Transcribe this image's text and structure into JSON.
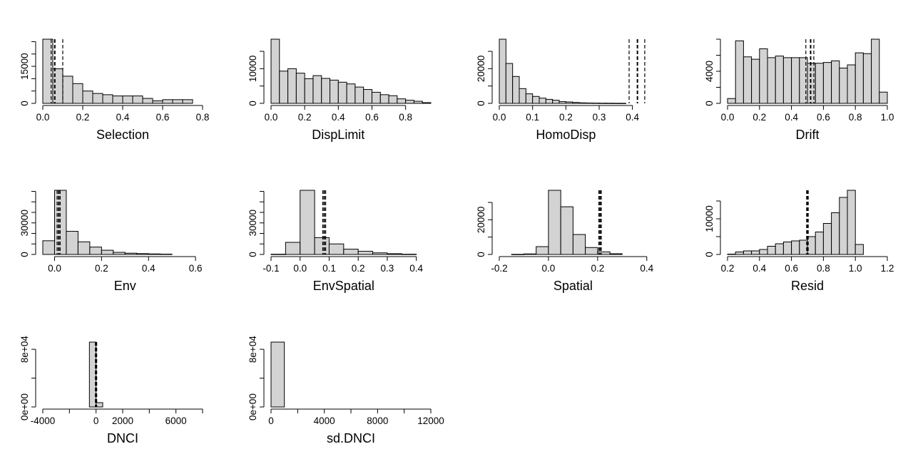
{
  "colors": {
    "bar_fill": "#d3d3d3",
    "bar_stroke": "#000000",
    "line": "#000000"
  },
  "chart_data": [
    {
      "type": "bar",
      "xlabel": "Selection",
      "xlim": [
        0.0,
        0.8
      ],
      "ylim": [
        0,
        26000
      ],
      "xticks": [
        0.0,
        0.2,
        0.4,
        0.6,
        0.8
      ],
      "xtick_labels": [
        "0.0",
        "0.2",
        "0.4",
        "0.6",
        "0.8"
      ],
      "yticks": [
        0,
        5000,
        10000,
        15000,
        20000,
        25000
      ],
      "ytick_labels": [
        "0",
        "",
        "",
        "15000",
        "",
        ""
      ],
      "bins": [
        0.0,
        0.05,
        0.1,
        0.15,
        0.2,
        0.25,
        0.3,
        0.35,
        0.4,
        0.45,
        0.5,
        0.55,
        0.6,
        0.65,
        0.7,
        0.75
      ],
      "bin_width": 0.05,
      "values": [
        26000,
        14000,
        11000,
        8000,
        5000,
        4000,
        3500,
        3000,
        3000,
        3000,
        2000,
        1000,
        1500,
        1500,
        1500,
        0
      ],
      "vlines": [
        0.042,
        0.06,
        0.1
      ]
    },
    {
      "type": "bar",
      "xlabel": "DispLimit",
      "xlim": [
        0.0,
        0.95
      ],
      "ylim": [
        0,
        18500
      ],
      "xticks": [
        0.0,
        0.2,
        0.4,
        0.6,
        0.8
      ],
      "xtick_labels": [
        "0.0",
        "0.2",
        "0.4",
        "0.6",
        "0.8"
      ],
      "yticks": [
        0,
        5000,
        10000,
        15000
      ],
      "ytick_labels": [
        "0",
        "",
        "10000",
        ""
      ],
      "bins": [
        0.0,
        0.05,
        0.1,
        0.15,
        0.2,
        0.25,
        0.3,
        0.35,
        0.4,
        0.45,
        0.5,
        0.55,
        0.6,
        0.65,
        0.7,
        0.75,
        0.8,
        0.85,
        0.9
      ],
      "bin_width": 0.05,
      "values": [
        18500,
        9300,
        10000,
        8700,
        7100,
        8000,
        7200,
        6700,
        6100,
        5600,
        4700,
        4000,
        3200,
        2500,
        2200,
        1300,
        900,
        600,
        200
      ],
      "vlines": []
    },
    {
      "type": "bar",
      "xlabel": "HomoDisp",
      "xlim": [
        0.0,
        0.48
      ],
      "ylim": [
        0,
        37000
      ],
      "xticks": [
        0.0,
        0.1,
        0.2,
        0.3,
        0.4
      ],
      "xtick_labels": [
        "0.0",
        "0.1",
        "0.2",
        "0.3",
        "0.4"
      ],
      "yticks": [
        0,
        10000,
        20000,
        30000
      ],
      "ytick_labels": [
        "0",
        "",
        "20000",
        ""
      ],
      "bins": [
        0.0,
        0.02,
        0.04,
        0.06,
        0.08,
        0.1,
        0.12,
        0.14,
        0.16,
        0.18,
        0.2,
        0.22,
        0.24,
        0.26,
        0.28,
        0.3,
        0.32,
        0.34,
        0.36
      ],
      "bin_width": 0.02,
      "values": [
        37000,
        23000,
        15500,
        8500,
        5500,
        4000,
        3000,
        2300,
        1800,
        1000,
        800,
        500,
        300,
        200,
        150,
        100,
        80,
        50,
        30
      ],
      "vlines": [
        0.39,
        0.415,
        0.437
      ]
    },
    {
      "type": "bar",
      "xlabel": "Drift",
      "xlim": [
        0.0,
        1.0
      ],
      "ylim": [
        0,
        8000
      ],
      "xticks": [
        0.0,
        0.2,
        0.4,
        0.6,
        0.8,
        1.0
      ],
      "xtick_labels": [
        "0.0",
        "0.2",
        "0.4",
        "0.6",
        "0.8",
        "1.0"
      ],
      "yticks": [
        0,
        2000,
        4000,
        6000,
        8000
      ],
      "ytick_labels": [
        "0",
        "",
        "4000",
        "",
        ""
      ],
      "bins": [
        0.0,
        0.05,
        0.1,
        0.15,
        0.2,
        0.25,
        0.3,
        0.35,
        0.4,
        0.45,
        0.5,
        0.55,
        0.6,
        0.65,
        0.7,
        0.75,
        0.8,
        0.85,
        0.9,
        0.95
      ],
      "bin_width": 0.05,
      "values": [
        600,
        7800,
        5800,
        5500,
        6800,
        5700,
        5900,
        5700,
        5700,
        5700,
        5000,
        5000,
        5100,
        5300,
        4400,
        4800,
        6300,
        6200,
        8000,
        1400
      ],
      "vlines": [
        0.49,
        0.52,
        0.54
      ]
    },
    {
      "type": "bar",
      "xlabel": "Env",
      "xlim": [
        -0.05,
        0.63
      ],
      "ylim": [
        0,
        61000
      ],
      "xticks": [
        0.0,
        0.2,
        0.4,
        0.6
      ],
      "xtick_labels": [
        "0.0",
        "0.2",
        "0.4",
        "0.6"
      ],
      "yticks": [
        0,
        10000,
        20000,
        30000,
        40000,
        50000,
        60000
      ],
      "ytick_labels": [
        "0",
        "",
        "",
        "30000",
        "",
        "",
        ""
      ],
      "bins": [
        -0.05,
        0.0,
        0.05,
        0.1,
        0.15,
        0.2,
        0.25,
        0.3,
        0.35,
        0.4,
        0.45
      ],
      "bin_width": 0.05,
      "values": [
        13000,
        61000,
        22000,
        12000,
        7000,
        4000,
        2000,
        1200,
        800,
        500,
        300
      ],
      "vlines": [
        0.011,
        0.018,
        0.024
      ]
    },
    {
      "type": "bar",
      "xlabel": "EnvSpatial",
      "xlim": [
        -0.1,
        0.45
      ],
      "ylim": [
        0,
        61000
      ],
      "xticks": [
        -0.1,
        0.0,
        0.1,
        0.2,
        0.3,
        0.4
      ],
      "xtick_labels": [
        "-0.1",
        "0.0",
        "0.1",
        "0.2",
        "0.3",
        "0.4"
      ],
      "yticks": [
        0,
        10000,
        20000,
        30000,
        40000,
        50000,
        60000
      ],
      "ytick_labels": [
        "0",
        "",
        "",
        "30000",
        "",
        "",
        ""
      ],
      "bins": [
        -0.1,
        -0.05,
        0.0,
        0.05,
        0.1,
        0.15,
        0.2,
        0.25,
        0.3,
        0.35
      ],
      "bin_width": 0.05,
      "values": [
        200,
        11500,
        61000,
        16000,
        10000,
        5000,
        3000,
        1500,
        700,
        200
      ],
      "vlines": [
        0.078,
        0.083,
        0.088
      ]
    },
    {
      "type": "bar",
      "xlabel": "Spatial",
      "xlim": [
        -0.2,
        0.45
      ],
      "ylim": [
        0,
        37000
      ],
      "xticks": [
        -0.2,
        0.0,
        0.2,
        0.4
      ],
      "xtick_labels": [
        "-0.2",
        "0.0",
        "0.2",
        "0.4"
      ],
      "yticks": [
        0,
        10000,
        20000,
        30000
      ],
      "ytick_labels": [
        "0",
        "",
        "20000",
        ""
      ],
      "bins": [
        -0.2,
        -0.15,
        -0.1,
        -0.05,
        0.0,
        0.05,
        0.1,
        0.15,
        0.2,
        0.25,
        0.3
      ],
      "bin_width": 0.05,
      "values": [
        0,
        50,
        300,
        4500,
        37000,
        27500,
        11500,
        4000,
        1500,
        400,
        0
      ],
      "vlines": [
        0.205,
        0.21,
        0.215
      ]
    },
    {
      "type": "bar",
      "xlabel": "Resid",
      "xlim": [
        0.2,
        1.2
      ],
      "ylim": [
        0,
        18000
      ],
      "xticks": [
        0.2,
        0.4,
        0.6,
        0.8,
        1.0,
        1.2
      ],
      "xtick_labels": [
        "0.2",
        "0.4",
        "0.6",
        "0.8",
        "1.0",
        "1.2"
      ],
      "yticks": [
        0,
        5000,
        10000,
        15000
      ],
      "ytick_labels": [
        "0",
        "",
        "10000",
        ""
      ],
      "bins": [
        0.2,
        0.25,
        0.3,
        0.35,
        0.4,
        0.45,
        0.5,
        0.55,
        0.6,
        0.65,
        0.7,
        0.75,
        0.8,
        0.85,
        0.9,
        0.95,
        1.0
      ],
      "bin_width": 0.05,
      "values": [
        100,
        700,
        1000,
        1000,
        1400,
        2300,
        3000,
        3500,
        3800,
        4000,
        5000,
        6300,
        8700,
        11700,
        16000,
        18000,
        2800
      ],
      "vlines": [
        0.695,
        0.7,
        0.705
      ]
    },
    {
      "type": "bar",
      "xlabel": "DNCI",
      "xlim": [
        -4000,
        8000
      ],
      "ylim": [
        0,
        90000
      ],
      "xticks": [
        -4000,
        -2000,
        0,
        2000,
        4000,
        6000,
        8000
      ],
      "xtick_labels": [
        "-4000",
        "",
        "0",
        "2000",
        "",
        "6000",
        ""
      ],
      "yticks": [
        0,
        40000,
        80000
      ],
      "ytick_labels": [
        "0e+00",
        "",
        "8e+04"
      ],
      "bins": [
        -500,
        0
      ],
      "bin_width": 500,
      "values": [
        90000,
        6000
      ],
      "vlines": [
        -50,
        0,
        50
      ]
    },
    {
      "type": "bar",
      "xlabel": "sd.DNCI",
      "xlim": [
        0,
        12000
      ],
      "ylim": [
        0,
        90000
      ],
      "xticks": [
        0,
        2000,
        4000,
        6000,
        8000,
        10000,
        12000
      ],
      "xtick_labels": [
        "0",
        "",
        "4000",
        "",
        "8000",
        "",
        "12000"
      ],
      "yticks": [
        0,
        40000,
        80000
      ],
      "ytick_labels": [
        "0e+00",
        "",
        "8e+04"
      ],
      "bins": [
        0
      ],
      "bin_width": 1000,
      "values": [
        90000
      ],
      "vlines": []
    }
  ]
}
